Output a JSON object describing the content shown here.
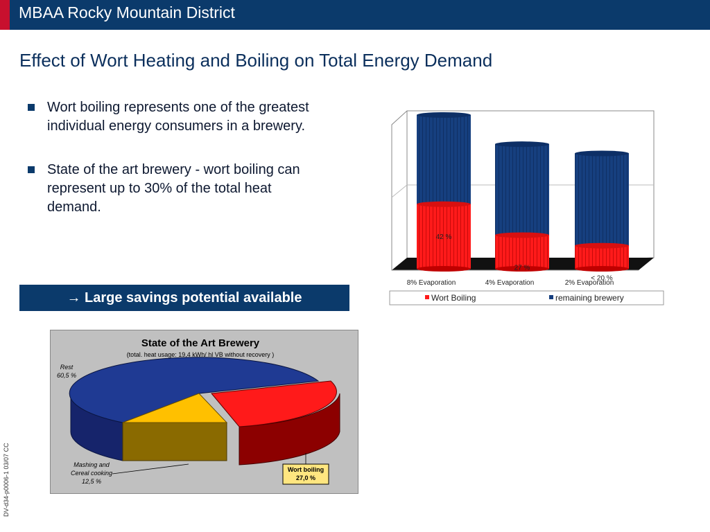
{
  "header": {
    "title": "MBAA Rocky Mountain District"
  },
  "slide": {
    "title": "Effect of Wort Heating and Boiling on Total Energy Demand",
    "bullets": [
      {
        "text": "Wort boiling represents one of the greatest individual energy consumers in a brewery."
      },
      {
        "text": "State of the art brewery - wort boiling can represent up to 30% of the total heat demand."
      }
    ],
    "callout": "→ Large savings potential available",
    "side_code": "DV-d34-p0006-1 03/07 CC"
  },
  "colors": {
    "header": "#0b3a6b",
    "accent": "#c8102e",
    "red": "#ff1a1a",
    "blue": "#163f7f",
    "yellow_label": "#ffe680"
  },
  "chart_data": [
    {
      "type": "bar",
      "stacked": true,
      "categories": [
        "8% Evaporation",
        "4% Evaporation",
        "2% Evaporation"
      ],
      "series": [
        {
          "name": "Wort Boiling",
          "values": [
            42,
            27,
            20
          ],
          "labels": [
            "42 %",
            "27 %",
            "< 20 %"
          ],
          "color": "#ff1a1a"
        },
        {
          "name": "remaining brewery",
          "values": [
            58,
            73,
            80
          ],
          "color": "#163f7f"
        }
      ],
      "relative_totals": [
        100,
        81,
        75
      ],
      "ylim": [
        0,
        100
      ],
      "grid": true,
      "legend": "bottom"
    },
    {
      "type": "pie",
      "title": "State of the Art Brewery",
      "subtitle": "(total. heat usage: 19,4 kWh/ hl VB without recovery )",
      "slices": [
        {
          "label": "Wort boiling",
          "value_label": "27,0 %",
          "value": 27.0,
          "color": "#ff1a1a"
        },
        {
          "label": "Mashing and Cereal cooking",
          "value_label": "12,5 %",
          "value": 12.5,
          "color": "#ffc000"
        },
        {
          "label": "Rest",
          "value_label": "60,5 %",
          "value": 60.5,
          "color": "#1f3a93"
        }
      ]
    }
  ]
}
